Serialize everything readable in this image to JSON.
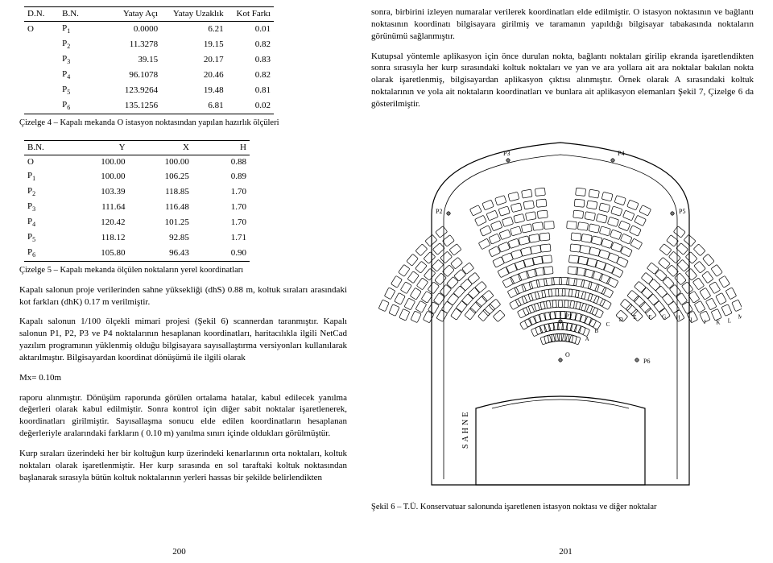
{
  "left": {
    "table1": {
      "headers": [
        "D.N.",
        "B.N.",
        "Yatay Açı",
        "Yatay Uzaklık",
        "Kot Farkı"
      ],
      "first_col": "O",
      "rows": [
        [
          "P1",
          "0.0000",
          "6.21",
          "0.01"
        ],
        [
          "P2",
          "11.3278",
          "19.15",
          "0.82"
        ],
        [
          "P3",
          "39.15",
          "20.17",
          "0.83"
        ],
        [
          "P4",
          "96.1078",
          "20.46",
          "0.82"
        ],
        [
          "P5",
          "123.9264",
          "19.48",
          "0.81"
        ],
        [
          "P6",
          "135.1256",
          "6.81",
          "0.02"
        ]
      ],
      "caption": "Çizelge 4 – Kapalı mekanda O istasyon noktasından yapılan hazırlık ölçüleri"
    },
    "table2": {
      "headers": [
        "B.N.",
        "Y",
        "X",
        "H"
      ],
      "rows": [
        [
          "O",
          "100.00",
          "100.00",
          "0.88"
        ],
        [
          "P1",
          "100.00",
          "106.25",
          "0.89"
        ],
        [
          "P2",
          "103.39",
          "118.85",
          "1.70"
        ],
        [
          "P3",
          "111.64",
          "116.48",
          "1.70"
        ],
        [
          "P4",
          "120.42",
          "101.25",
          "1.70"
        ],
        [
          "P5",
          "118.12",
          "92.85",
          "1.71"
        ],
        [
          "P6",
          "105.80",
          "96.43",
          "0.90"
        ]
      ],
      "caption": "Çizelge 5 – Kapalı mekanda ölçülen noktaların yerel koordinatları"
    },
    "paras": [
      "Kapalı salonun proje verilerinden sahne yüksekliği (dhS) 0.88 m, koltuk sıraları arasındaki kot farkları (dhK) 0.17 m verilmiştir.",
      "Kapalı salonun 1/100 ölçekli  mimari projesi (Şekil 6) scannerdan taranmıştır. Kapalı salonun P1, P2, P3 ve P4  noktalarının hesaplanan koordinatları, haritacılıkla ilgili NetCad yazılım programının yüklenmiş olduğu bilgisayara sayısallaştırma versiyonları kullanılarak aktarılmıştır. Bilgisayardan koordinat dönüşümü ile ilgili olarak",
      "Mx= 0.10m",
      "raporu alınmıştır. Dönüşüm raporunda görülen ortalama hatalar, kabul edilecek yanılma değerleri olarak kabul edilmiştir. Sonra kontrol için diğer sabit noktalar işaretlenerek, koordinatları girilmiştir. Sayısallaşma sonucu elde edilen koordinatların hesaplanan değerleriyle aralarındaki farkların ( 0.10 m) yanılma sınırı içinde oldukları görülmüştür.",
      "Kurp sıraları üzerindeki her bir koltuğun kurp üzerindeki kenarlarının orta noktaları, koltuk noktaları olarak işaretlenmiştir. Her kurp sırasında en sol taraftaki koltuk noktasından başlanarak sırasıyla bütün koltuk noktalarının yerleri hassas bir şekilde belirlendikten"
    ],
    "page": "200"
  },
  "right": {
    "paras": [
      "sonra, birbirini izleyen numaralar verilerek koordinatları elde edilmiştir. O istasyon noktasının ve bağlantı noktasının koordinatı bilgisayara girilmiş ve taramanın yapıldığı bilgisayar tabakasında noktaların görünümü sağlanmıştır.",
      "Kutupsal yöntemle aplikasyon için önce durulan nokta, bağlantı noktaları girilip ekranda işaretlendikten sonra sırasıyla her kurp sırasındaki koltuk noktaları ve yan ve ara yollara ait ara noktalar bakılan nokta olarak  işaretlenmiş, bilgisayardan aplikasyon çıktısı alınmıştır. Örnek olarak A sırasındaki koltuk noktalarının ve yola ait noktaların koordinatları ve bunlara ait aplikasyon elemanları  Şekil 7, Çizelge 6 da gösterilmiştir."
    ],
    "figure": {
      "sahne_label": "SAHNE",
      "caption": "Şekil 6 – T.Ü. Konservatuar salonunda işaretlenen istasyon noktası ve diğer noktalar",
      "markers": [
        "O",
        "P1",
        "P2",
        "P3",
        "P4",
        "P5",
        "P6"
      ],
      "row_labels": [
        "A",
        "B",
        "C",
        "D",
        "E",
        "F",
        "G",
        "H",
        "I",
        "J",
        "K",
        "L",
        "M",
        "N"
      ]
    },
    "page": "201"
  },
  "colors": {
    "text": "#000000",
    "bg": "#ffffff",
    "line": "#000000",
    "seat_stroke": "#000000"
  }
}
